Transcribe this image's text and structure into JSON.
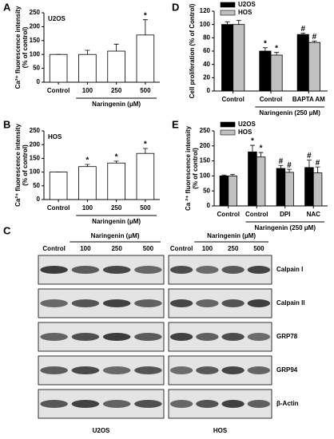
{
  "chart_data": [
    {
      "type": "bar",
      "panel": "A",
      "cell_label": "U2OS",
      "ylabel": [
        "Ca²⁺ fluorescence intensity",
        "(% of control)"
      ],
      "categories": [
        "Control",
        "100",
        "250",
        "500"
      ],
      "group_label": "Naringenin (μM)",
      "series": [
        {
          "color": "#ffffff",
          "values": [
            100,
            100,
            112,
            170
          ],
          "errors": [
            0,
            15,
            25,
            55
          ],
          "marks": [
            null,
            null,
            null,
            "*"
          ]
        }
      ],
      "ylim": [
        0,
        250
      ],
      "yticks": [
        0,
        50,
        100,
        150,
        200,
        250
      ],
      "legend": false
    },
    {
      "type": "bar",
      "panel": "B",
      "cell_label": "HOS",
      "ylabel": [
        "Ca²⁺ fluorescence intensity",
        "(% of control)"
      ],
      "categories": [
        "Control",
        "100",
        "250",
        "500"
      ],
      "group_label": "Naringenin (μM)",
      "series": [
        {
          "color": "#ffffff",
          "values": [
            100,
            120,
            133,
            168
          ],
          "errors": [
            0,
            8,
            7,
            18
          ],
          "marks": [
            null,
            "*",
            "*",
            "*"
          ]
        }
      ],
      "ylim": [
        0,
        250
      ],
      "yticks": [
        0,
        50,
        100,
        150,
        200,
        250
      ],
      "legend": false
    },
    {
      "type": "bar",
      "panel": "D",
      "ylabel": [
        "Cell proliferation (% of Control)"
      ],
      "categories": [
        "Control",
        "Control",
        "BAPTA AM"
      ],
      "group_label": "Naringenin (250 μM)",
      "series": [
        {
          "name": "U2OS",
          "color": "#000000",
          "values": [
            100,
            60,
            85
          ],
          "errors": [
            4,
            5,
            2
          ],
          "marks": [
            null,
            "*",
            "#"
          ]
        },
        {
          "name": "HOS",
          "color": "#c0c0c0",
          "values": [
            100,
            54,
            73
          ],
          "errors": [
            6,
            4,
            2
          ],
          "marks": [
            null,
            "*",
            "#"
          ]
        }
      ],
      "ylim": [
        0,
        120
      ],
      "yticks": [
        0,
        20,
        40,
        60,
        80,
        100,
        120
      ],
      "legend": "upper left"
    },
    {
      "type": "bar",
      "panel": "E",
      "ylabel": [
        "Ca ²⁺ fluorescence intensity",
        "(% of control)"
      ],
      "categories": [
        "Control",
        "Control",
        "DPI",
        "NAC"
      ],
      "group_label": "Naringenin (250 μM)",
      "series": [
        {
          "name": "U2OS",
          "color": "#000000",
          "values": [
            100,
            180,
            125,
            128
          ],
          "errors": [
            3,
            22,
            10,
            25
          ],
          "marks": [
            null,
            "*",
            "#",
            "#"
          ]
        },
        {
          "name": "HOS",
          "color": "#c0c0c0",
          "values": [
            100,
            163,
            112,
            110
          ],
          "errors": [
            5,
            15,
            10,
            20
          ],
          "marks": [
            null,
            "*",
            "#",
            "#"
          ]
        }
      ],
      "ylim": [
        0,
        250
      ],
      "yticks": [
        0,
        50,
        100,
        150,
        200,
        250
      ],
      "legend": "upper left"
    }
  ],
  "blot": {
    "panel": "C",
    "treatment": "Naringenin (μM)",
    "lanes": [
      "Control",
      "100",
      "250",
      "500"
    ],
    "proteins": [
      "Calpain I",
      "Calpain II",
      "GRP78",
      "GRP94",
      "β-Actin"
    ],
    "cells": [
      "U2OS",
      "HOS"
    ]
  }
}
